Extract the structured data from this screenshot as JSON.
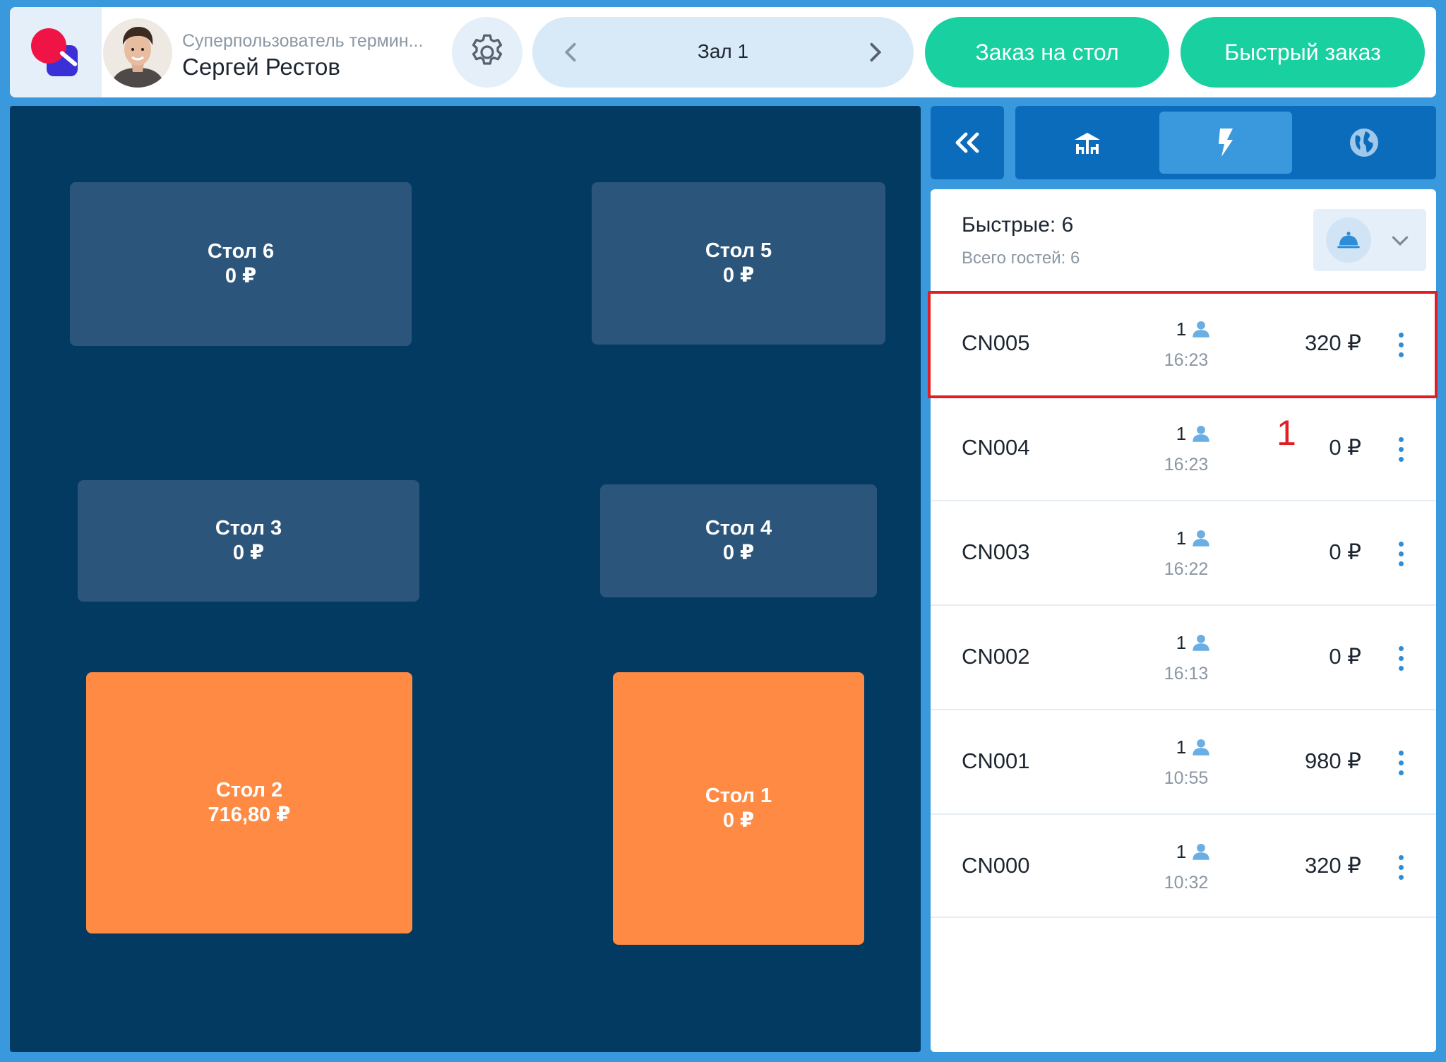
{
  "header": {
    "user_role": "Суперпользователь термин...",
    "user_name": "Сергей Рестов",
    "hall": {
      "title": "Зал 1"
    },
    "buttons": {
      "table_order": "Заказ на стол",
      "quick_order": "Быстрый заказ"
    }
  },
  "tables": [
    {
      "name": "Стол 6",
      "amount": "0 ₽",
      "status": "free"
    },
    {
      "name": "Стол 5",
      "amount": "0 ₽",
      "status": "free"
    },
    {
      "name": "Стол 3",
      "amount": "0 ₽",
      "status": "free"
    },
    {
      "name": "Стол 4",
      "amount": "0 ₽",
      "status": "free"
    },
    {
      "name": "Стол 2",
      "amount": "716,80 ₽",
      "status": "occupied"
    },
    {
      "name": "Стол 1",
      "amount": "0 ₽",
      "status": "occupied"
    }
  ],
  "tabs": {
    "active": "quick",
    "items": [
      "tables-icon",
      "quick-order-icon",
      "web-orders-icon"
    ]
  },
  "panel": {
    "title": "Быстрые: 6",
    "guests_total": "Всего гостей: 6"
  },
  "orders": [
    {
      "id": "CN005",
      "guests": "1",
      "time": "16:23",
      "sum": "320 ₽"
    },
    {
      "id": "CN004",
      "guests": "1",
      "time": "16:23",
      "sum": "0 ₽"
    },
    {
      "id": "CN003",
      "guests": "1",
      "time": "16:22",
      "sum": "0 ₽"
    },
    {
      "id": "CN002",
      "guests": "1",
      "time": "16:13",
      "sum": "0 ₽"
    },
    {
      "id": "CN001",
      "guests": "1",
      "time": "10:55",
      "sum": "980 ₽"
    },
    {
      "id": "CN000",
      "guests": "1",
      "time": "10:32",
      "sum": "320 ₽"
    }
  ],
  "annotation": {
    "callout_label": "1"
  },
  "colors": {
    "page_bg": "#3a98dc",
    "floor_bg": "#033a62",
    "table_free": "#2b557a",
    "table_occupied": "#ff8a44",
    "accent_green": "#19d0a0",
    "tab_bar": "#0c6cbc",
    "highlight": "#e01e24"
  }
}
